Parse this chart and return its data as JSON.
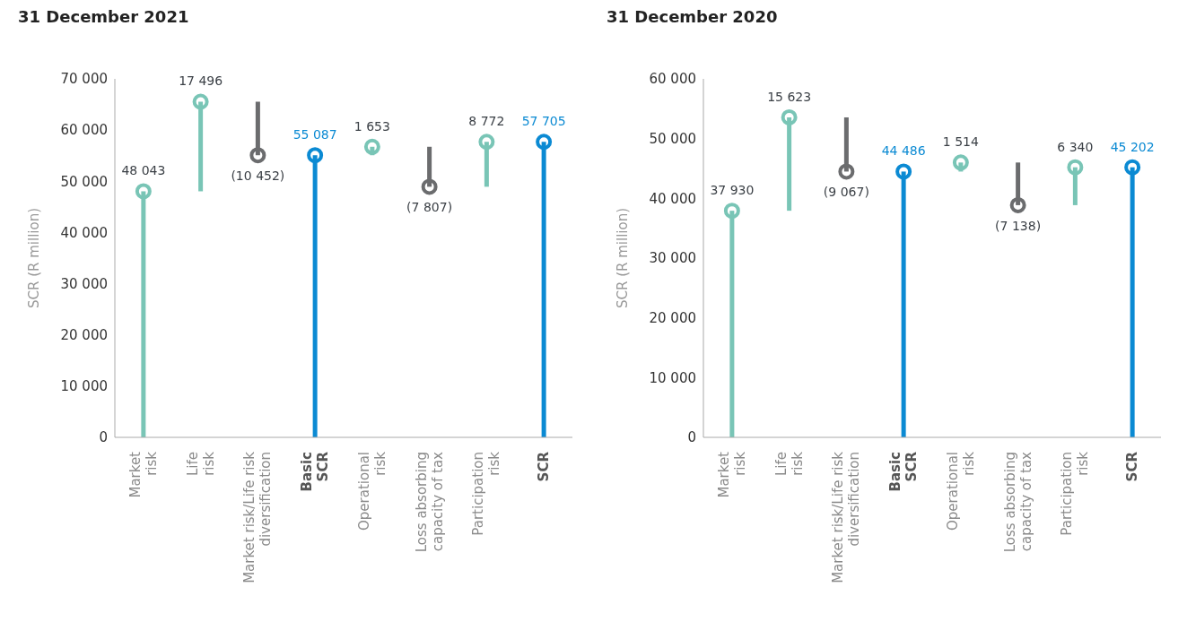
{
  "chart_data": [
    {
      "type": "bar",
      "title": "31 December 2021",
      "ylabel": "SCR (R million)",
      "categories": [
        "Market\nrisk",
        "Life\nrisk",
        "Market risk/Life risk\ndiversification",
        "Basic\nSCR",
        "Operational\nrisk",
        "Loss absorbing\ncapacity of tax",
        "Participation\nrisk",
        "SCR"
      ],
      "values": [
        48043,
        17496,
        -10452,
        55087,
        1653,
        -7807,
        8772,
        57705
      ],
      "base": [
        0,
        48043,
        65539,
        0,
        55087,
        56740,
        48933,
        0
      ],
      "value_labels": [
        "48 043",
        "17 496",
        "(10 452)",
        "55 087",
        "1 653",
        "(7 807)",
        "8 772",
        "57 705"
      ],
      "colors": [
        "#79c5b6",
        "#79c5b6",
        "#6b6c6e",
        "#0b8ad3",
        "#79c5b6",
        "#6b6c6e",
        "#79c5b6",
        "#0b8ad3"
      ],
      "ylim": [
        0,
        70000
      ],
      "yticks": [
        {
          "value": 0,
          "label": "0"
        },
        {
          "value": 10000,
          "label": "10 000"
        },
        {
          "value": 20000,
          "label": "20 000"
        },
        {
          "value": 30000,
          "label": "30 000"
        },
        {
          "value": 40000,
          "label": "40 000"
        },
        {
          "value": 50000,
          "label": "50 000"
        },
        {
          "value": 60000,
          "label": "60 000"
        },
        {
          "value": 70000,
          "label": "70 000"
        }
      ],
      "grid": false,
      "legend": false
    },
    {
      "type": "bar",
      "title": "31 December 2020",
      "ylabel": "SCR (R million)",
      "categories": [
        "Market\nrisk",
        "Life\nrisk",
        "Market risk/Life risk\ndiversification",
        "Basic\nSCR",
        "Operational\nrisk",
        "Loss absorbing\ncapacity of tax",
        "Participation\nrisk",
        "SCR"
      ],
      "values": [
        37930,
        15623,
        -9067,
        44486,
        1514,
        -7138,
        6340,
        45202
      ],
      "base": [
        0,
        37930,
        53553,
        0,
        44486,
        46000,
        38862,
        0
      ],
      "value_labels": [
        "37 930",
        "15 623",
        "(9 067)",
        "44 486",
        "1 514",
        "(7 138)",
        "6 340",
        "45 202"
      ],
      "colors": [
        "#79c5b6",
        "#79c5b6",
        "#6b6c6e",
        "#0b8ad3",
        "#79c5b6",
        "#6b6c6e",
        "#79c5b6",
        "#0b8ad3"
      ],
      "ylim": [
        0,
        60000
      ],
      "yticks": [
        {
          "value": 0,
          "label": "0"
        },
        {
          "value": 10000,
          "label": "10 000"
        },
        {
          "value": 20000,
          "label": "20 000"
        },
        {
          "value": 30000,
          "label": "30 000"
        },
        {
          "value": 40000,
          "label": "40 000"
        },
        {
          "value": 50000,
          "label": "50 000"
        },
        {
          "value": 60000,
          "label": "60 000"
        }
      ],
      "grid": false,
      "legend": false
    }
  ]
}
